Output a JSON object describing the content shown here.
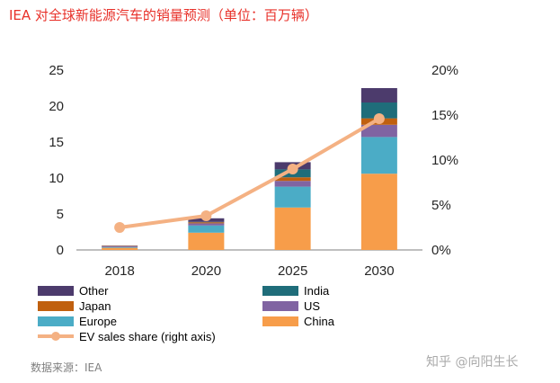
{
  "title": "IEA 对全球新能源汽车的销量预测（单位：百万辆）",
  "source": "数据来源：IEA",
  "watermark": "知乎 @向阳生长",
  "chart_data": {
    "type": "bar",
    "stacked": true,
    "categories": [
      "2018",
      "2020",
      "2025",
      "2030"
    ],
    "series": [
      {
        "name": "China",
        "color": "#f79d4a",
        "values": [
          0.3,
          2.4,
          5.9,
          10.6
        ]
      },
      {
        "name": "Europe",
        "color": "#4bacc6",
        "values": [
          0.1,
          1.0,
          2.9,
          5.1
        ]
      },
      {
        "name": "US",
        "color": "#8064a2",
        "values": [
          0.1,
          0.3,
          0.8,
          1.7
        ]
      },
      {
        "name": "Japan",
        "color": "#c0600f",
        "values": [
          0.05,
          0.15,
          0.5,
          0.9
        ]
      },
      {
        "name": "India",
        "color": "#1f6d7a",
        "values": [
          0.0,
          0.05,
          1.1,
          2.2
        ]
      },
      {
        "name": "Other",
        "color": "#4c3b6c",
        "values": [
          0.05,
          0.5,
          1.0,
          2.0
        ]
      }
    ],
    "line_series": {
      "name": "EV sales share (right axis)",
      "color": "#f4b183",
      "values": [
        2.5,
        3.8,
        9.0,
        14.6
      ]
    },
    "y_ticks": [
      "0",
      "5",
      "10",
      "15",
      "20",
      "25"
    ],
    "y2_ticks": [
      "0%",
      "5%",
      "10%",
      "15%",
      "20%"
    ],
    "ylim": [
      0,
      25
    ],
    "y2lim": [
      0,
      20
    ],
    "legend_placement": "bottom",
    "legend_order": [
      "Other",
      "India",
      "Japan",
      "US",
      "Europe",
      "China"
    ],
    "grid": false
  }
}
